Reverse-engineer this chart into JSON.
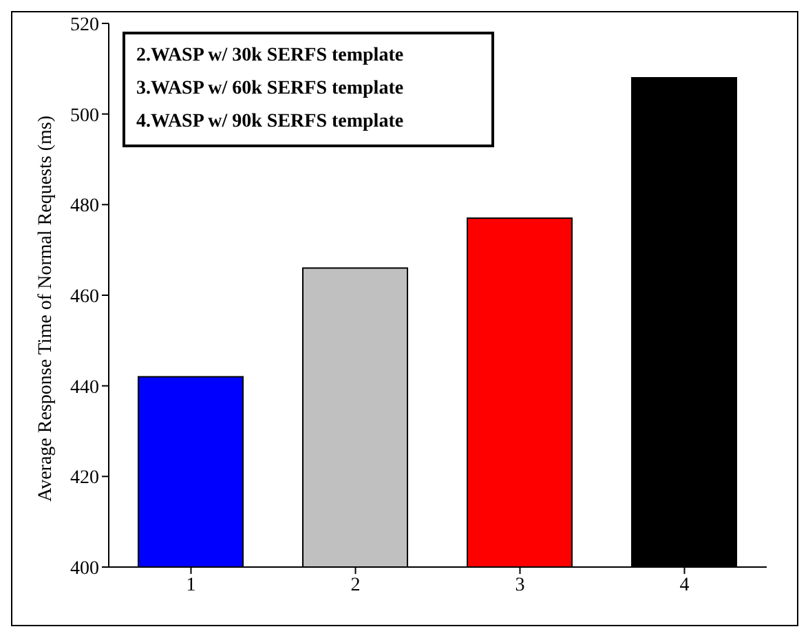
{
  "chart_data": {
    "type": "bar",
    "ylabel": "Average Response Time of Normal Requests (ms)",
    "categories": [
      "1",
      "2",
      "3",
      "4"
    ],
    "values": [
      442,
      466,
      477,
      508
    ],
    "colors": [
      "#0000ff",
      "#c0c0c0",
      "#ff0000",
      "#000000"
    ],
    "ylim": [
      400,
      520
    ],
    "yticks": [
      400,
      420,
      440,
      460,
      480,
      500,
      520
    ],
    "grid": false,
    "legend": false,
    "annotations": [
      "2.WASP w/ 30k SERFS template",
      "3.WASP w/ 60k SERFS template",
      "4.WASP w/ 90k SERFS template"
    ]
  }
}
